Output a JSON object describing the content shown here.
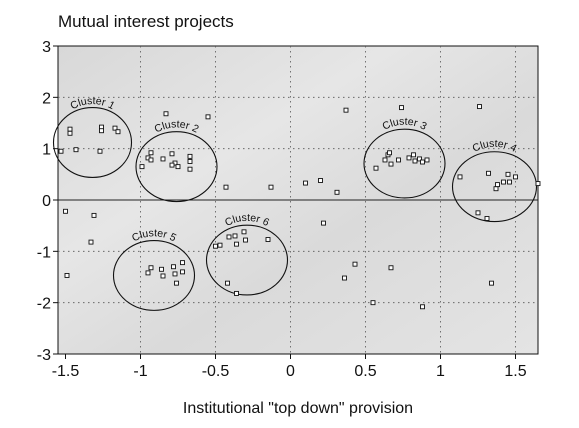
{
  "chart_data": {
    "type": "scatter",
    "title": "Mutual interest projects",
    "xlabel": "Institutional \"top down\" provision",
    "ylabel": "",
    "xlim": [
      -1.55,
      1.65
    ],
    "ylim": [
      -3,
      3
    ],
    "xticks": [
      -1.5,
      -1,
      -0.5,
      0,
      0.5,
      1,
      1.5
    ],
    "xtick_labels": [
      "-1.5",
      "-1",
      "-0.5",
      "0",
      "0.5",
      "1",
      "1.5"
    ],
    "yticks": [
      -3,
      -2,
      -1,
      0,
      1,
      2,
      3
    ],
    "ytick_labels": [
      "-3",
      "-2",
      "-1",
      "0",
      "1",
      "2",
      "3"
    ],
    "grid": true,
    "zero_line": true,
    "background": "gray-gradient",
    "points": [
      {
        "x": -1.53,
        "y": 0.95
      },
      {
        "x": -1.47,
        "y": 1.38
      },
      {
        "x": -1.47,
        "y": 1.3
      },
      {
        "x": -1.43,
        "y": 0.98
      },
      {
        "x": -1.26,
        "y": 1.42
      },
      {
        "x": -1.26,
        "y": 1.35
      },
      {
        "x": -1.17,
        "y": 1.4
      },
      {
        "x": -1.15,
        "y": 1.33
      },
      {
        "x": -1.27,
        "y": 0.95
      },
      {
        "x": -0.83,
        "y": 1.68
      },
      {
        "x": -0.93,
        "y": 0.92
      },
      {
        "x": -0.95,
        "y": 0.82
      },
      {
        "x": -0.93,
        "y": 0.78
      },
      {
        "x": -0.85,
        "y": 0.8
      },
      {
        "x": -0.79,
        "y": 0.9
      },
      {
        "x": -0.77,
        "y": 0.72
      },
      {
        "x": -0.79,
        "y": 0.68
      },
      {
        "x": -0.75,
        "y": 0.65
      },
      {
        "x": -0.67,
        "y": 0.85
      },
      {
        "x": -0.67,
        "y": 0.75
      },
      {
        "x": -0.67,
        "y": 0.6
      },
      {
        "x": -0.99,
        "y": 0.65
      },
      {
        "x": -0.55,
        "y": 1.62
      },
      {
        "x": -0.43,
        "y": 0.25
      },
      {
        "x": -0.13,
        "y": 0.25
      },
      {
        "x": 0.1,
        "y": 0.33
      },
      {
        "x": 0.2,
        "y": 0.38
      },
      {
        "x": 0.31,
        "y": 0.15
      },
      {
        "x": 0.37,
        "y": 1.75
      },
      {
        "x": 0.74,
        "y": 1.8
      },
      {
        "x": 1.26,
        "y": 1.82
      },
      {
        "x": 0.57,
        "y": 0.62
      },
      {
        "x": 0.63,
        "y": 0.78
      },
      {
        "x": 0.65,
        "y": 0.88
      },
      {
        "x": 0.67,
        "y": 0.7
      },
      {
        "x": 0.72,
        "y": 0.78
      },
      {
        "x": 0.79,
        "y": 0.82
      },
      {
        "x": 0.82,
        "y": 0.88
      },
      {
        "x": 0.83,
        "y": 0.76
      },
      {
        "x": 0.86,
        "y": 0.8
      },
      {
        "x": 0.88,
        "y": 0.74
      },
      {
        "x": 0.91,
        "y": 0.78
      },
      {
        "x": 0.66,
        "y": 0.92
      },
      {
        "x": 1.13,
        "y": 0.45
      },
      {
        "x": 1.25,
        "y": -0.25
      },
      {
        "x": 1.31,
        "y": -0.36
      },
      {
        "x": 1.32,
        "y": 0.52
      },
      {
        "x": 1.37,
        "y": 0.22
      },
      {
        "x": 1.42,
        "y": 0.35
      },
      {
        "x": 1.45,
        "y": 0.5
      },
      {
        "x": 1.46,
        "y": 0.35
      },
      {
        "x": 1.5,
        "y": 0.45
      },
      {
        "x": 1.38,
        "y": 0.3
      },
      {
        "x": 1.65,
        "y": 0.32
      },
      {
        "x": -1.5,
        "y": -0.22
      },
      {
        "x": -1.31,
        "y": -0.3
      },
      {
        "x": -1.33,
        "y": -0.82
      },
      {
        "x": -1.49,
        "y": -1.47
      },
      {
        "x": -0.93,
        "y": -1.32
      },
      {
        "x": -0.95,
        "y": -1.42
      },
      {
        "x": -0.86,
        "y": -1.35
      },
      {
        "x": -0.85,
        "y": -1.48
      },
      {
        "x": -0.78,
        "y": -1.3
      },
      {
        "x": -0.77,
        "y": -1.44
      },
      {
        "x": -0.72,
        "y": -1.4
      },
      {
        "x": -0.76,
        "y": -1.62
      },
      {
        "x": -0.72,
        "y": -1.22
      },
      {
        "x": -0.5,
        "y": -0.9
      },
      {
        "x": -0.47,
        "y": -0.88
      },
      {
        "x": -0.41,
        "y": -0.72
      },
      {
        "x": -0.37,
        "y": -0.7
      },
      {
        "x": -0.36,
        "y": -0.86
      },
      {
        "x": -0.31,
        "y": -0.62
      },
      {
        "x": -0.3,
        "y": -0.78
      },
      {
        "x": -0.15,
        "y": -0.77
      },
      {
        "x": -0.42,
        "y": -1.62
      },
      {
        "x": -0.36,
        "y": -1.82
      },
      {
        "x": 0.22,
        "y": -0.45
      },
      {
        "x": 0.36,
        "y": -1.52
      },
      {
        "x": 0.43,
        "y": -1.25
      },
      {
        "x": 0.67,
        "y": -1.32
      },
      {
        "x": 0.55,
        "y": -2.0
      },
      {
        "x": 0.88,
        "y": -2.08
      },
      {
        "x": 1.34,
        "y": -1.62
      }
    ],
    "clusters": [
      {
        "label": "Cluster 1",
        "cx": -1.32,
        "cy": 1.12,
        "rx": 0.26,
        "ry": 0.68
      },
      {
        "label": "Cluster 2",
        "cx": -0.76,
        "cy": 0.65,
        "rx": 0.27,
        "ry": 0.68
      },
      {
        "label": "Cluster 3",
        "cx": 0.76,
        "cy": 0.71,
        "rx": 0.27,
        "ry": 0.67
      },
      {
        "label": "Cluster 4",
        "cx": 1.36,
        "cy": 0.26,
        "rx": 0.28,
        "ry": 0.68
      },
      {
        "label": "Cluster 5",
        "cx": -0.91,
        "cy": -1.47,
        "rx": 0.27,
        "ry": 0.68
      },
      {
        "label": "Cluster 6",
        "cx": -0.29,
        "cy": -1.17,
        "rx": 0.27,
        "ry": 0.68
      }
    ]
  }
}
